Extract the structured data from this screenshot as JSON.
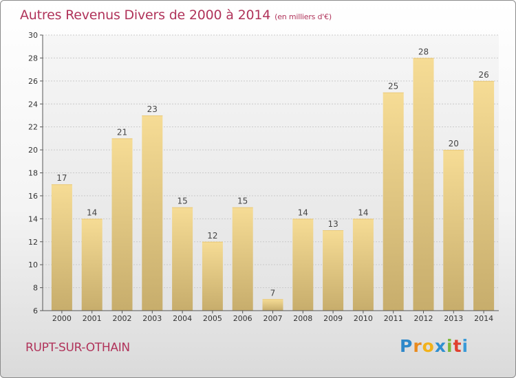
{
  "header": {
    "title": "Autres Revenus Divers de 2000 à 2014",
    "subtitle": "(en milliers d'€)"
  },
  "footer": {
    "city": "RUPT-SUR-OTHAIN",
    "logo": "Proxiti"
  },
  "colors": {
    "title": "#b0335a",
    "bar_light": "#f6dc95",
    "bar_dark": "#c7ad6c"
  },
  "chart_data": {
    "type": "bar",
    "title": "Autres Revenus Divers de 2000 à 2014",
    "subtitle": "(en milliers d'€)",
    "categories": [
      "2000",
      "2001",
      "2002",
      "2003",
      "2004",
      "2005",
      "2006",
      "2007",
      "2008",
      "2009",
      "2010",
      "2011",
      "2012",
      "2013",
      "2014"
    ],
    "values": [
      17,
      14,
      21,
      23,
      15,
      12,
      15,
      7,
      14,
      13,
      14,
      25,
      28,
      20,
      26
    ],
    "ylim": [
      6,
      30
    ],
    "yticks": [
      6,
      8,
      10,
      12,
      14,
      16,
      18,
      20,
      22,
      24,
      26,
      28,
      30
    ],
    "grid": true,
    "data_labels": true,
    "xlabel": "",
    "ylabel": ""
  }
}
